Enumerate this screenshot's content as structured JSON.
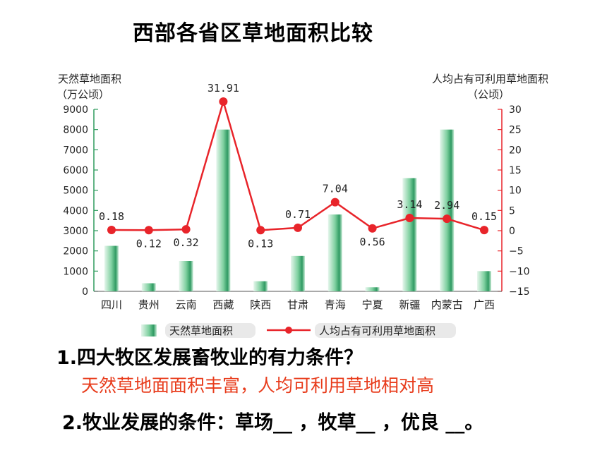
{
  "title": "西部各省区草地面积比较",
  "chart_data": {
    "type": "bar+line",
    "categories": [
      "四川",
      "贵州",
      "云南",
      "西藏",
      "陕西",
      "甘肃",
      "青海",
      "宁夏",
      "新疆",
      "内蒙古",
      "广西"
    ],
    "series": [
      {
        "name": "天然草地面积",
        "type": "bar",
        "axis": "left",
        "values": [
          2250,
          400,
          1500,
          8000,
          500,
          1750,
          3800,
          200,
          5600,
          8000,
          1000
        ]
      },
      {
        "name": "人均占有可利用草地面积",
        "type": "line",
        "axis": "right",
        "values": [
          0.18,
          0.12,
          0.32,
          31.91,
          0.13,
          0.71,
          7.04,
          0.56,
          3.14,
          2.94,
          0.15
        ]
      }
    ],
    "data_labels": [
      "0.18",
      "0.12",
      "0.32",
      "31.91",
      "0.13",
      "0.71",
      "7.04",
      "0.56",
      "3.14",
      "2.94",
      "0.15"
    ],
    "left_axis": {
      "label_line1": "天然草地面积",
      "label_line2": "（万公顷）",
      "ylim": [
        0,
        9000
      ],
      "ticks": [
        0,
        1000,
        2000,
        3000,
        4000,
        5000,
        6000,
        7000,
        8000,
        9000
      ]
    },
    "right_axis": {
      "label_line1": "人均占有可利用草地面积",
      "label_line2": "（公顷）",
      "ylim": [
        -15,
        30
      ],
      "ticks": [
        -15,
        -10,
        -5,
        0,
        5,
        10,
        15,
        20,
        25,
        30
      ],
      "tick_labels": [
        "−15",
        "−10",
        "−5",
        "0",
        "5",
        "10",
        "15",
        "20",
        "25",
        "30"
      ]
    },
    "legend": {
      "bar_label": "天然草地面积",
      "line_label": "人均占有可利用草地面积",
      "position": "bottom"
    },
    "colors": {
      "bar_light": "#d9f1e3",
      "bar_dark": "#3aa36b",
      "line": "#e8242a",
      "left_axis": "#2e9b5e",
      "right_axis": "#e8242a"
    }
  },
  "questions": {
    "q1": "1.四大牧区发展畜牧业的有力条件？",
    "a1": "天然草地面面积丰富，人均可利用草地相对高",
    "q2": "2.牧业发展的条件：草场__ ，牧草__ ，优良 __。"
  }
}
